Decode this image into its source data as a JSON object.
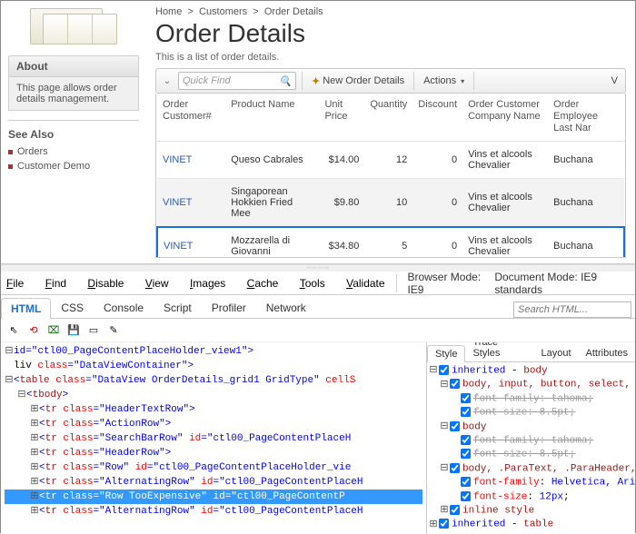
{
  "sidebar": {
    "about_title": "About",
    "about_text": "This page allows order details management.",
    "see_also_title": "See Also",
    "links": [
      "Orders",
      "Customer Demo"
    ]
  },
  "page": {
    "breadcrumb": [
      "Home",
      "Customers",
      "Order Details"
    ],
    "title": "Order Details",
    "subtitle": "This is a list of order details."
  },
  "toolbar": {
    "quick_find_placeholder": "Quick Find",
    "new_label": "New Order Details",
    "actions_label": "Actions",
    "v_label": "V"
  },
  "grid": {
    "columns": [
      "Order Customer#",
      "Product Name",
      "Unit Price",
      "Quantity",
      "Discount",
      "Order Customer Company Name",
      "Order Employee Last Nar"
    ],
    "rows": [
      {
        "cust": "VINET",
        "product": "Queso Cabrales",
        "price": "$14.00",
        "qty": "12",
        "disc": "0",
        "company": "Vins et alcools Chevalier",
        "emp": "Buchana",
        "cls": ""
      },
      {
        "cust": "VINET",
        "product": "Singaporean Hokkien Fried Mee",
        "price": "$9.80",
        "qty": "10",
        "disc": "0",
        "company": "Vins et alcools Chevalier",
        "emp": "Buchana",
        "cls": "alt"
      },
      {
        "cust": "VINET",
        "product": "Mozzarella di Giovanni",
        "price": "$34.80",
        "qty": "5",
        "disc": "0",
        "company": "Vins et alcools Chevalier",
        "emp": "Buchana",
        "cls": "sel-row"
      }
    ]
  },
  "dev": {
    "menu": [
      "File",
      "Find",
      "Disable",
      "View",
      "Images",
      "Cache",
      "Tools",
      "Validate"
    ],
    "browser_mode_label": "Browser Mode:",
    "browser_mode_val": "IE9",
    "doc_mode_label": "Document Mode:",
    "doc_mode_val": "IE9 standards",
    "tabs": [
      "HTML",
      "CSS",
      "Console",
      "Script",
      "Profiler",
      "Network"
    ],
    "active_tab": 0,
    "search_placeholder": "Search HTML...",
    "style_tabs": [
      "Style",
      "Trace Styles",
      "Layout",
      "Attributes"
    ],
    "active_style_tab": 0
  },
  "tree": [
    {
      "ind": 0,
      "tw": "−",
      "parts": [
        [
          "pn",
          "id"
        ],
        [
          "pn",
          "=\""
        ],
        [
          "av",
          "ctl00_PageContentPlaceHolder_view1"
        ],
        [
          "pn",
          "\">"
        ]
      ]
    },
    {
      "ind": 0,
      "tw": "",
      "parts": [
        [
          "tx",
          "liv "
        ],
        [
          "at",
          "class"
        ],
        [
          "pn",
          "=\""
        ],
        [
          "av",
          "DataViewContainer"
        ],
        [
          "pn",
          "\">"
        ]
      ]
    },
    {
      "ind": 0,
      "tw": "−",
      "parts": [
        [
          "pn",
          "<"
        ],
        [
          "tg",
          "table"
        ],
        [
          "tx",
          " "
        ],
        [
          "at",
          "class"
        ],
        [
          "pn",
          "=\""
        ],
        [
          "av",
          "DataView OrderDetails_grid1 GridType"
        ],
        [
          "pn",
          "\" "
        ],
        [
          "at",
          "cellS"
        ]
      ]
    },
    {
      "ind": 1,
      "tw": "−",
      "parts": [
        [
          "pn",
          "<"
        ],
        [
          "tg",
          "tbody"
        ],
        [
          "pn",
          ">"
        ]
      ]
    },
    {
      "ind": 2,
      "tw": "+",
      "parts": [
        [
          "pn",
          "<"
        ],
        [
          "tg",
          "tr"
        ],
        [
          "tx",
          " "
        ],
        [
          "at",
          "class"
        ],
        [
          "pn",
          "=\""
        ],
        [
          "av",
          "HeaderTextRow"
        ],
        [
          "pn",
          "\">"
        ]
      ]
    },
    {
      "ind": 2,
      "tw": "+",
      "parts": [
        [
          "pn",
          "<"
        ],
        [
          "tg",
          "tr"
        ],
        [
          "tx",
          " "
        ],
        [
          "at",
          "class"
        ],
        [
          "pn",
          "=\""
        ],
        [
          "av",
          "ActionRow"
        ],
        [
          "pn",
          "\">"
        ]
      ]
    },
    {
      "ind": 2,
      "tw": "+",
      "parts": [
        [
          "pn",
          "<"
        ],
        [
          "tg",
          "tr"
        ],
        [
          "tx",
          " "
        ],
        [
          "at",
          "class"
        ],
        [
          "pn",
          "=\""
        ],
        [
          "av",
          "SearchBarRow"
        ],
        [
          "pn",
          "\" "
        ],
        [
          "at",
          "id"
        ],
        [
          "pn",
          "=\""
        ],
        [
          "av",
          "ctl00_PageContentPlaceH"
        ]
      ]
    },
    {
      "ind": 2,
      "tw": "+",
      "parts": [
        [
          "pn",
          "<"
        ],
        [
          "tg",
          "tr"
        ],
        [
          "tx",
          " "
        ],
        [
          "at",
          "class"
        ],
        [
          "pn",
          "=\""
        ],
        [
          "av",
          "HeaderRow"
        ],
        [
          "pn",
          "\">"
        ]
      ]
    },
    {
      "ind": 2,
      "tw": "+",
      "parts": [
        [
          "pn",
          "<"
        ],
        [
          "tg",
          "tr"
        ],
        [
          "tx",
          " "
        ],
        [
          "at",
          "class"
        ],
        [
          "pn",
          "=\""
        ],
        [
          "av",
          "Row"
        ],
        [
          "pn",
          "\" "
        ],
        [
          "at",
          "id"
        ],
        [
          "pn",
          "=\""
        ],
        [
          "av",
          "ctl00_PageContentPlaceHolder_vie"
        ]
      ]
    },
    {
      "ind": 2,
      "tw": "+",
      "parts": [
        [
          "pn",
          "<"
        ],
        [
          "tg",
          "tr"
        ],
        [
          "tx",
          " "
        ],
        [
          "at",
          "class"
        ],
        [
          "pn",
          "=\""
        ],
        [
          "av",
          "AlternatingRow"
        ],
        [
          "pn",
          "\" "
        ],
        [
          "at",
          "id"
        ],
        [
          "pn",
          "=\""
        ],
        [
          "av",
          "ctl00_PageContentPlaceH"
        ]
      ]
    },
    {
      "ind": 2,
      "tw": "+",
      "sel": true,
      "parts": [
        [
          "pn",
          "<"
        ],
        [
          "tg",
          "tr"
        ],
        [
          "tx",
          " "
        ],
        [
          "at",
          "class"
        ],
        [
          "pn",
          "=\""
        ],
        [
          "av",
          "Row  TooExpensive"
        ],
        [
          "pn",
          "\" "
        ],
        [
          "at",
          "id"
        ],
        [
          "pn",
          "=\""
        ],
        [
          "av",
          "ctl00_PageContentP"
        ]
      ]
    },
    {
      "ind": 2,
      "tw": "+",
      "parts": [
        [
          "pn",
          "<"
        ],
        [
          "tg",
          "tr"
        ],
        [
          "tx",
          " "
        ],
        [
          "at",
          "class"
        ],
        [
          "pn",
          "=\""
        ],
        [
          "av",
          "AlternatingRow"
        ],
        [
          "pn",
          "\" "
        ],
        [
          "at",
          "id"
        ],
        [
          "pn",
          "=\""
        ],
        [
          "av",
          "ctl00_PageContentPlaceH"
        ]
      ]
    }
  ],
  "styles": [
    {
      "ind": 0,
      "tw": "−",
      "cb": true,
      "txt": [
        [
          "kw",
          "inherited"
        ],
        [
          "tx",
          " - "
        ],
        [
          "sel",
          "body"
        ]
      ]
    },
    {
      "ind": 1,
      "tw": "−",
      "cb": true,
      "txt": [
        [
          "sel",
          "body, input, button, select, t"
        ]
      ]
    },
    {
      "ind": 2,
      "tw": "",
      "cb": true,
      "strike": true,
      "txt": [
        [
          "prop",
          "font-family"
        ],
        [
          "tx",
          ": "
        ],
        [
          "val",
          "tahoma"
        ],
        [
          "tx",
          ";"
        ]
      ]
    },
    {
      "ind": 2,
      "tw": "",
      "cb": true,
      "strike": true,
      "txt": [
        [
          "prop",
          "font-size"
        ],
        [
          "tx",
          ": "
        ],
        [
          "val",
          "8.5pt"
        ],
        [
          "tx",
          ";"
        ]
      ]
    },
    {
      "ind": 1,
      "tw": "−",
      "cb": true,
      "txt": [
        [
          "sel",
          "body"
        ]
      ]
    },
    {
      "ind": 2,
      "tw": "",
      "cb": true,
      "strike": true,
      "txt": [
        [
          "prop",
          "font-family"
        ],
        [
          "tx",
          ": "
        ],
        [
          "val",
          "tahoma"
        ],
        [
          "tx",
          ";"
        ]
      ]
    },
    {
      "ind": 2,
      "tw": "",
      "cb": true,
      "strike": true,
      "txt": [
        [
          "prop",
          "font-size"
        ],
        [
          "tx",
          ": "
        ],
        [
          "val",
          "8.5pt"
        ],
        [
          "tx",
          ";"
        ]
      ]
    },
    {
      "ind": 1,
      "tw": "−",
      "cb": true,
      "txt": [
        [
          "sel",
          "body, .ParaText, .ParaHeader, "
        ]
      ]
    },
    {
      "ind": 2,
      "tw": "",
      "cb": true,
      "txt": [
        [
          "prop",
          "font-family"
        ],
        [
          "tx",
          ": "
        ],
        [
          "val",
          "Helvetica, Aria"
        ]
      ]
    },
    {
      "ind": 2,
      "tw": "",
      "cb": true,
      "txt": [
        [
          "prop",
          "font-size"
        ],
        [
          "tx",
          ": "
        ],
        [
          "val",
          "12px"
        ],
        [
          "tx",
          ";"
        ]
      ]
    },
    {
      "ind": 1,
      "tw": "+",
      "cb": true,
      "txt": [
        [
          "sel",
          "inline style"
        ]
      ]
    },
    {
      "ind": 0,
      "tw": "+",
      "cb": true,
      "txt": [
        [
          "kw",
          "inherited"
        ],
        [
          "tx",
          " - "
        ],
        [
          "sel",
          "table"
        ]
      ]
    }
  ]
}
